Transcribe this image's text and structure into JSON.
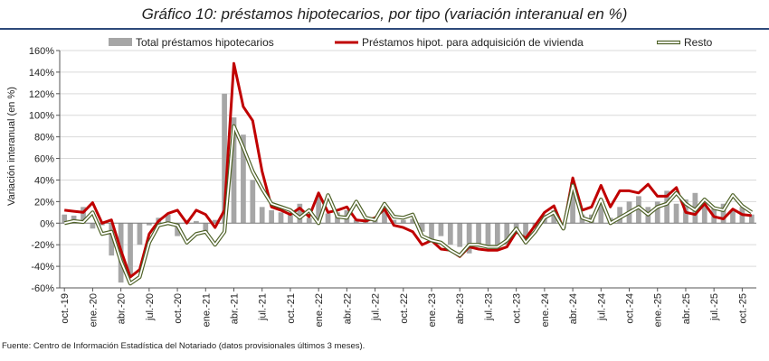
{
  "header": {
    "title": "Gráfico 10: préstamos hipotecarios, por tipo (variación interanual en %)"
  },
  "footer": {
    "source": "Fuente: Centro de Información Estadística del Notariado (datos provisionales últimos 3 meses)."
  },
  "colors": {
    "bars": "#a6a6a6",
    "vivienda": "#c00000",
    "resto": "#4f6228",
    "grid": "#d9d9d9",
    "axis": "#555555"
  },
  "chart_data": {
    "type": "bar",
    "title": "Gráfico 10: préstamos hipotecarios, por tipo (variación interanual en %)",
    "ylabel": "Variación interanual (en %)",
    "ylim": [
      -60,
      160
    ],
    "yticks": [
      -60,
      -40,
      -20,
      0,
      20,
      40,
      60,
      80,
      100,
      120,
      140,
      160
    ],
    "ytick_labels": [
      "-60%",
      "-40%",
      "-20%",
      "0%",
      "20%",
      "40%",
      "60%",
      "80%",
      "100%",
      "120%",
      "140%",
      "160%"
    ],
    "grid": true,
    "legend_position": "top",
    "x": [
      "oct.-19",
      "nov.-19",
      "dic.-19",
      "ene.-20",
      "feb.-20",
      "mar.-20",
      "abr.-20",
      "may.-20",
      "jun.-20",
      "jul.-20",
      "ago.-20",
      "sep.-20",
      "oct.-20",
      "nov.-20",
      "dic.-20",
      "ene.-21",
      "feb.-21",
      "mar.-21",
      "abr.-21",
      "may.-21",
      "jun.-21",
      "jul.-21",
      "ago.-21",
      "sep.-21",
      "oct.-21",
      "nov.-21",
      "dic.-21",
      "ene.-22",
      "feb.-22",
      "mar.-22",
      "abr.-22",
      "may.-22",
      "jun.-22",
      "jul.-22",
      "ago.-22",
      "sep.-22",
      "oct.-22",
      "nov.-22",
      "dic.-22",
      "ene.-23",
      "feb.-23",
      "mar.-23",
      "abr.-23",
      "may.-23",
      "jun.-23",
      "jul.-23",
      "ago.-23",
      "sep.-23",
      "oct.-23",
      "nov.-23",
      "dic.-23",
      "ene.-24",
      "feb.-24",
      "mar.-24",
      "abr.-24",
      "may.-24",
      "jun.-24",
      "jul.-24",
      "ago.-24",
      "sep.-24",
      "oct.-24",
      "nov.-24",
      "dic.-24",
      "ene.-25",
      "feb.-25",
      "mar.-25",
      "abr.-25",
      "may.-25",
      "jun.-25",
      "jul.-25",
      "ago.-25",
      "sep.-25",
      "oct.-25",
      "nov.-25"
    ],
    "xtick_labels": [
      "oct.-19",
      "ene.-20",
      "abr.-20",
      "jul.-20",
      "oct.-20",
      "ene.-21",
      "abr.-21",
      "jul.-21",
      "oct.-21",
      "ene.-22",
      "abr.-22",
      "jul.-22",
      "oct.-22",
      "ene.-23",
      "abr.-23",
      "jul.-23",
      "oct.-23",
      "ene.-24",
      "abr.-24",
      "jul.-24",
      "oct.-24",
      "ene.-25",
      "abr.-25",
      "jul.-25",
      "oct.-25"
    ],
    "series": [
      {
        "name": "Total préstamos hipotecarios",
        "kind": "bar",
        "color": "#a6a6a6",
        "values": [
          8,
          7,
          15,
          -5,
          -2,
          -30,
          -55,
          -48,
          -20,
          -2,
          5,
          8,
          -12,
          3,
          2,
          -10,
          3,
          120,
          98,
          82,
          40,
          15,
          12,
          10,
          10,
          18,
          5,
          25,
          9,
          10,
          12,
          3,
          3,
          5,
          12,
          3,
          3,
          4,
          -8,
          -15,
          -12,
          -20,
          -22,
          -28,
          -22,
          -22,
          -22,
          -20,
          -10,
          -12,
          -5,
          8,
          12,
          -5,
          38,
          8,
          8,
          20,
          5,
          15,
          20,
          25,
          15,
          20,
          30,
          18,
          22,
          28,
          18,
          15,
          18,
          12,
          15,
          8
        ]
      },
      {
        "name": "Préstamos hipot. para adquisición de vivienda",
        "kind": "line",
        "color": "#c00000",
        "values": [
          12,
          11,
          10,
          19,
          0,
          3,
          -25,
          -50,
          -43,
          -10,
          2,
          9,
          12,
          0,
          12,
          8,
          -4,
          12,
          148,
          108,
          95,
          48,
          15,
          12,
          8,
          14,
          6,
          28,
          10,
          12,
          15,
          3,
          2,
          5,
          13,
          -2,
          -4,
          -8,
          -20,
          -16,
          -24,
          -25,
          -31,
          -22,
          -24,
          -25,
          -25,
          -22,
          -8,
          -14,
          -2,
          10,
          16,
          -5,
          42,
          12,
          15,
          35,
          15,
          30,
          30,
          28,
          36,
          25,
          25,
          33,
          10,
          8,
          18,
          6,
          4,
          13,
          8,
          7
        ]
      },
      {
        "name": "Resto",
        "kind": "line",
        "color": "#4f6228",
        "values": [
          0,
          2,
          1,
          10,
          -10,
          -8,
          -35,
          -56,
          -50,
          -18,
          -2,
          0,
          -2,
          -18,
          -10,
          -8,
          -20,
          -8,
          90,
          70,
          48,
          32,
          18,
          15,
          12,
          5,
          12,
          0,
          26,
          6,
          5,
          20,
          5,
          3,
          18,
          6,
          5,
          8,
          -12,
          -16,
          -18,
          -25,
          -30,
          -20,
          -20,
          -22,
          -22,
          -16,
          -5,
          -18,
          -8,
          5,
          10,
          -5,
          35,
          5,
          2,
          22,
          0,
          5,
          10,
          15,
          8,
          15,
          18,
          28,
          18,
          12,
          22,
          14,
          12,
          26,
          16,
          10
        ]
      }
    ]
  }
}
